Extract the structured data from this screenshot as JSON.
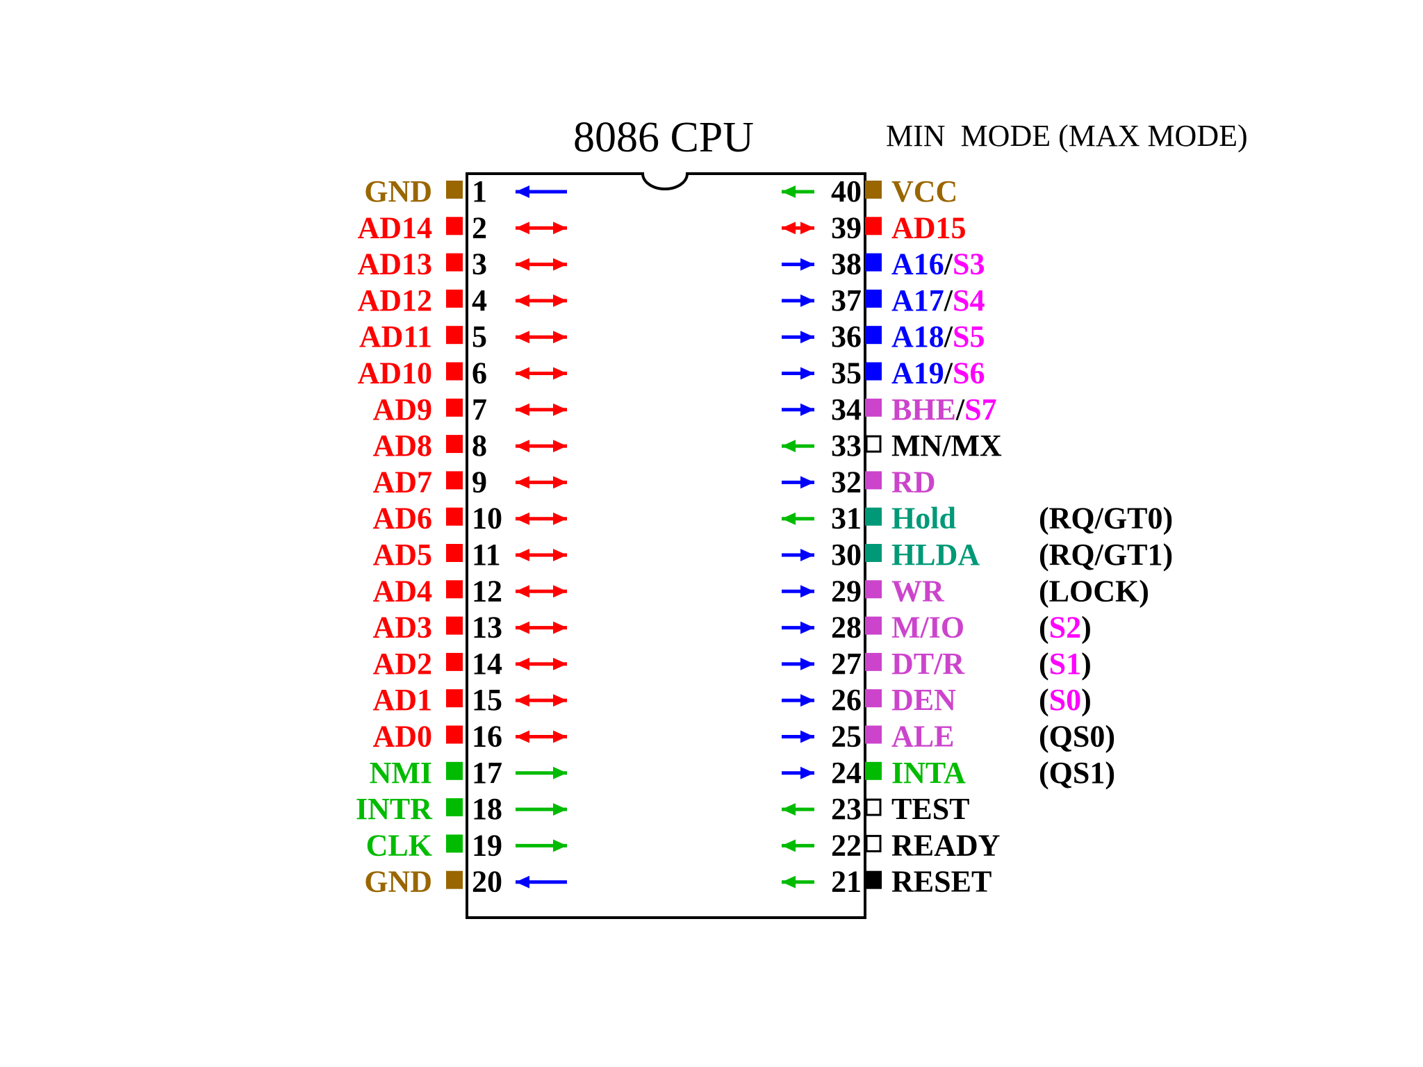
{
  "title": "8086 CPU",
  "mode_header": "MIN  MODE (MAX MODE)",
  "colors": {
    "power": "#996600",
    "address_data": "#ff0000",
    "address_status": "#0000ff",
    "status": "#ff00ff",
    "interrupt_clock": "#00bb00",
    "control": "#cc44cc",
    "hold": "#009977",
    "plain": "#000000",
    "arrow_in": "#00bb00",
    "arrow_out": "#0000ff",
    "arrow_bi": "#ff0000"
  },
  "left_pins": [
    {
      "num": "1",
      "parts": [
        {
          "text": "GND",
          "color": "power"
        }
      ],
      "square": "power",
      "arrow": "out"
    },
    {
      "num": "2",
      "parts": [
        {
          "text": "AD14",
          "color": "address_data"
        }
      ],
      "square": "address_data",
      "arrow": "bi"
    },
    {
      "num": "3",
      "parts": [
        {
          "text": "AD13",
          "color": "address_data"
        }
      ],
      "square": "address_data",
      "arrow": "bi"
    },
    {
      "num": "4",
      "parts": [
        {
          "text": "AD12",
          "color": "address_data"
        }
      ],
      "square": "address_data",
      "arrow": "bi"
    },
    {
      "num": "5",
      "parts": [
        {
          "text": "AD11",
          "color": "address_data"
        }
      ],
      "square": "address_data",
      "arrow": "bi"
    },
    {
      "num": "6",
      "parts": [
        {
          "text": "AD10",
          "color": "address_data"
        }
      ],
      "square": "address_data",
      "arrow": "bi"
    },
    {
      "num": "7",
      "parts": [
        {
          "text": "AD9",
          "color": "address_data"
        }
      ],
      "square": "address_data",
      "arrow": "bi"
    },
    {
      "num": "8",
      "parts": [
        {
          "text": "AD8",
          "color": "address_data"
        }
      ],
      "square": "address_data",
      "arrow": "bi"
    },
    {
      "num": "9",
      "parts": [
        {
          "text": "AD7",
          "color": "address_data"
        }
      ],
      "square": "address_data",
      "arrow": "bi"
    },
    {
      "num": "10",
      "parts": [
        {
          "text": "AD6",
          "color": "address_data"
        }
      ],
      "square": "address_data",
      "arrow": "bi"
    },
    {
      "num": "11",
      "parts": [
        {
          "text": "AD5",
          "color": "address_data"
        }
      ],
      "square": "address_data",
      "arrow": "bi"
    },
    {
      "num": "12",
      "parts": [
        {
          "text": "AD4",
          "color": "address_data"
        }
      ],
      "square": "address_data",
      "arrow": "bi"
    },
    {
      "num": "13",
      "parts": [
        {
          "text": "AD3",
          "color": "address_data"
        }
      ],
      "square": "address_data",
      "arrow": "bi"
    },
    {
      "num": "14",
      "parts": [
        {
          "text": "AD2",
          "color": "address_data"
        }
      ],
      "square": "address_data",
      "arrow": "bi"
    },
    {
      "num": "15",
      "parts": [
        {
          "text": "AD1",
          "color": "address_data"
        }
      ],
      "square": "address_data",
      "arrow": "bi"
    },
    {
      "num": "16",
      "parts": [
        {
          "text": "AD0",
          "color": "address_data"
        }
      ],
      "square": "address_data",
      "arrow": "bi"
    },
    {
      "num": "17",
      "parts": [
        {
          "text": "NMI",
          "color": "interrupt_clock"
        }
      ],
      "square": "interrupt_clock",
      "arrow": "in"
    },
    {
      "num": "18",
      "parts": [
        {
          "text": "INTR",
          "color": "interrupt_clock"
        }
      ],
      "square": "interrupt_clock",
      "arrow": "in"
    },
    {
      "num": "19",
      "parts": [
        {
          "text": "CLK",
          "color": "interrupt_clock"
        }
      ],
      "square": "interrupt_clock",
      "arrow": "in"
    },
    {
      "num": "20",
      "parts": [
        {
          "text": "GND",
          "color": "power"
        }
      ],
      "square": "power",
      "arrow": "out"
    }
  ],
  "right_pins": [
    {
      "num": "40",
      "parts": [
        {
          "text": "VCC",
          "color": "power"
        }
      ],
      "square": "power",
      "arrow": "in"
    },
    {
      "num": "39",
      "parts": [
        {
          "text": "AD15",
          "color": "address_data"
        }
      ],
      "square": "address_data",
      "arrow": "bi"
    },
    {
      "num": "38",
      "parts": [
        {
          "text": "A16",
          "color": "address_status"
        },
        {
          "text": "/",
          "color": "plain"
        },
        {
          "text": "S3",
          "color": "status"
        }
      ],
      "square": "address_status",
      "arrow": "out"
    },
    {
      "num": "37",
      "parts": [
        {
          "text": "A17",
          "color": "address_status"
        },
        {
          "text": "/",
          "color": "plain"
        },
        {
          "text": "S4",
          "color": "status"
        }
      ],
      "square": "address_status",
      "arrow": "out"
    },
    {
      "num": "36",
      "parts": [
        {
          "text": "A18",
          "color": "address_status"
        },
        {
          "text": "/",
          "color": "plain"
        },
        {
          "text": "S5",
          "color": "status"
        }
      ],
      "square": "address_status",
      "arrow": "out"
    },
    {
      "num": "35",
      "parts": [
        {
          "text": "A19",
          "color": "address_status"
        },
        {
          "text": "/",
          "color": "plain"
        },
        {
          "text": "S6",
          "color": "status"
        }
      ],
      "square": "address_status",
      "arrow": "out"
    },
    {
      "num": "34",
      "parts": [
        {
          "text": "BHE",
          "color": "control"
        },
        {
          "text": "/",
          "color": "plain"
        },
        {
          "text": "S7",
          "color": "status"
        }
      ],
      "square": "control",
      "arrow": "out"
    },
    {
      "num": "33",
      "parts": [
        {
          "text": "MN/MX",
          "color": "plain"
        }
      ],
      "square": "hollow",
      "arrow": "in"
    },
    {
      "num": "32",
      "parts": [
        {
          "text": "RD",
          "color": "control"
        }
      ],
      "square": "control",
      "arrow": "out"
    },
    {
      "num": "31",
      "parts": [
        {
          "text": "Hold",
          "color": "hold"
        }
      ],
      "square": "hold",
      "arrow": "in"
    },
    {
      "num": "30",
      "parts": [
        {
          "text": "HLDA",
          "color": "hold"
        }
      ],
      "square": "hold",
      "arrow": "out"
    },
    {
      "num": "29",
      "parts": [
        {
          "text": "WR",
          "color": "control"
        }
      ],
      "square": "control",
      "arrow": "out"
    },
    {
      "num": "28",
      "parts": [
        {
          "text": "M/IO",
          "color": "control"
        }
      ],
      "square": "control",
      "arrow": "out"
    },
    {
      "num": "27",
      "parts": [
        {
          "text": "DT/R",
          "color": "control"
        }
      ],
      "square": "control",
      "arrow": "out"
    },
    {
      "num": "26",
      "parts": [
        {
          "text": "DEN",
          "color": "control"
        }
      ],
      "square": "control",
      "arrow": "out"
    },
    {
      "num": "25",
      "parts": [
        {
          "text": "ALE",
          "color": "control"
        }
      ],
      "square": "control",
      "arrow": "out"
    },
    {
      "num": "24",
      "parts": [
        {
          "text": "INTA",
          "color": "interrupt_clock"
        }
      ],
      "square": "interrupt_clock",
      "arrow": "out"
    },
    {
      "num": "23",
      "parts": [
        {
          "text": "TEST",
          "color": "plain"
        }
      ],
      "square": "hollow",
      "arrow": "in"
    },
    {
      "num": "22",
      "parts": [
        {
          "text": "READY",
          "color": "plain"
        }
      ],
      "square": "hollow",
      "arrow": "in"
    },
    {
      "num": "21",
      "parts": [
        {
          "text": "RESET",
          "color": "plain"
        }
      ],
      "square": "plain",
      "arrow": "in"
    }
  ],
  "max_mode_labels": [
    {
      "pin": "31",
      "parts": [
        {
          "text": "(",
          "color": "plain"
        },
        {
          "text": "RQ",
          "color": "plain"
        },
        {
          "text": "/",
          "color": "plain"
        },
        {
          "text": "GT0",
          "color": "plain"
        },
        {
          "text": ")",
          "color": "plain"
        }
      ]
    },
    {
      "pin": "30",
      "parts": [
        {
          "text": "(",
          "color": "plain"
        },
        {
          "text": "RQ",
          "color": "plain"
        },
        {
          "text": "/",
          "color": "plain"
        },
        {
          "text": "GT1",
          "color": "plain"
        },
        {
          "text": ")",
          "color": "plain"
        }
      ]
    },
    {
      "pin": "29",
      "parts": [
        {
          "text": "(",
          "color": "plain"
        },
        {
          "text": "LOCK",
          "color": "plain"
        },
        {
          "text": ")",
          "color": "plain"
        }
      ]
    },
    {
      "pin": "28",
      "parts": [
        {
          "text": "(",
          "color": "plain"
        },
        {
          "text": "S2",
          "color": "status"
        },
        {
          "text": ")",
          "color": "plain"
        }
      ]
    },
    {
      "pin": "27",
      "parts": [
        {
          "text": "(",
          "color": "plain"
        },
        {
          "text": "S1",
          "color": "status"
        },
        {
          "text": ")",
          "color": "plain"
        }
      ]
    },
    {
      "pin": "26",
      "parts": [
        {
          "text": "(",
          "color": "plain"
        },
        {
          "text": "S0",
          "color": "status"
        },
        {
          "text": ")",
          "color": "plain"
        }
      ]
    },
    {
      "pin": "25",
      "parts": [
        {
          "text": "(QS0)",
          "color": "plain"
        }
      ]
    },
    {
      "pin": "24",
      "parts": [
        {
          "text": "(QS1)",
          "color": "plain"
        }
      ]
    }
  ]
}
